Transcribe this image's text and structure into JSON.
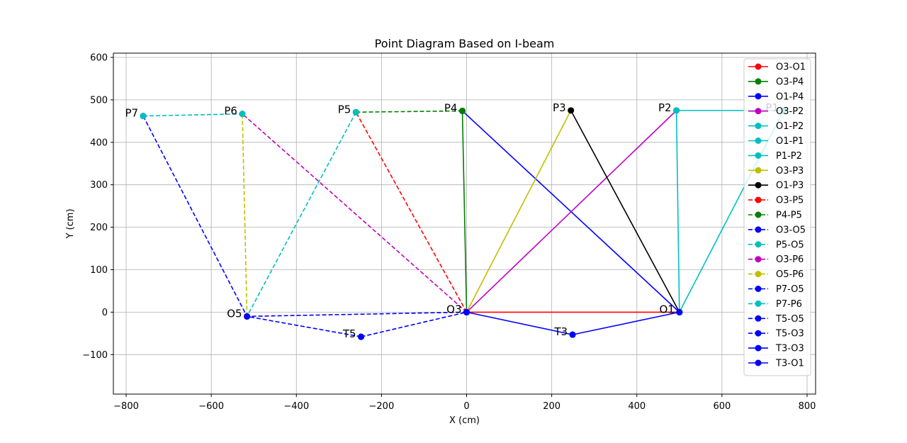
{
  "chart_data": {
    "type": "line",
    "title": "Point Diagram Based on I-beam",
    "xlabel": "X (cm)",
    "ylabel": "Y (cm)",
    "xlim": [
      -830,
      820
    ],
    "ylim": [
      -193,
      610
    ],
    "x_ticks": [
      -800,
      -600,
      -400,
      -200,
      0,
      200,
      400,
      600,
      800
    ],
    "x_tick_labels": [
      "−800",
      "−600",
      "−400",
      "−200",
      "0",
      "200",
      "400",
      "600",
      "800"
    ],
    "y_ticks": [
      -100,
      0,
      100,
      200,
      300,
      400,
      500,
      600
    ],
    "y_tick_labels": [
      "−100",
      "0",
      "100",
      "200",
      "300",
      "400",
      "500",
      "600"
    ],
    "grid": true,
    "legend_position": "right",
    "points": [
      {
        "label": "O3",
        "x": 0,
        "y": 0
      },
      {
        "label": "O1",
        "x": 500,
        "y": 0
      },
      {
        "label": "P1",
        "x": 745,
        "y": 475
      },
      {
        "label": "P2",
        "x": 493,
        "y": 475
      },
      {
        "label": "P3",
        "x": 245,
        "y": 475
      },
      {
        "label": "P4",
        "x": -10,
        "y": 474
      },
      {
        "label": "P5",
        "x": -260,
        "y": 471
      },
      {
        "label": "P6",
        "x": -527,
        "y": 467
      },
      {
        "label": "P7",
        "x": -760,
        "y": 462
      },
      {
        "label": "O5",
        "x": -516,
        "y": -10
      },
      {
        "label": "T5",
        "x": -248,
        "y": -58
      },
      {
        "label": "T3",
        "x": 249,
        "y": -53
      }
    ],
    "series": [
      {
        "name": "O3-O1",
        "color": "#ff0000",
        "dashed": false,
        "from": "O3",
        "to": "O1"
      },
      {
        "name": "O3-P4",
        "color": "#008000",
        "dashed": false,
        "from": "O3",
        "to": "P4"
      },
      {
        "name": "O1-P4",
        "color": "#0000ff",
        "dashed": false,
        "from": "O1",
        "to": "P4"
      },
      {
        "name": "O3-P2",
        "color": "#bf00bf",
        "dashed": false,
        "from": "O3",
        "to": "P2"
      },
      {
        "name": "O1-P2",
        "color": "#00bfbf",
        "dashed": false,
        "from": "O1",
        "to": "P2"
      },
      {
        "name": "O1-P1",
        "color": "#00bfbf",
        "dashed": false,
        "from": "O1",
        "to": "P1"
      },
      {
        "name": "P1-P2",
        "color": "#00bfbf",
        "dashed": false,
        "from": "P1",
        "to": "P2"
      },
      {
        "name": "O3-P3",
        "color": "#bfbf00",
        "dashed": false,
        "from": "O3",
        "to": "P3"
      },
      {
        "name": "O1-P3",
        "color": "#000000",
        "dashed": false,
        "from": "O1",
        "to": "P3"
      },
      {
        "name": "O3-P5",
        "color": "#ff0000",
        "dashed": true,
        "from": "O3",
        "to": "P5"
      },
      {
        "name": "P4-P5",
        "color": "#008000",
        "dashed": true,
        "from": "P4",
        "to": "P5"
      },
      {
        "name": "O3-O5",
        "color": "#0000ff",
        "dashed": true,
        "from": "O3",
        "to": "O5"
      },
      {
        "name": "P5-O5",
        "color": "#00bfbf",
        "dashed": true,
        "from": "P5",
        "to": "O5"
      },
      {
        "name": "O3-P6",
        "color": "#bf00bf",
        "dashed": true,
        "from": "O3",
        "to": "P6"
      },
      {
        "name": "O5-P6",
        "color": "#bfbf00",
        "dashed": true,
        "from": "O5",
        "to": "P6"
      },
      {
        "name": "P7-O5",
        "color": "#0000ff",
        "dashed": true,
        "from": "P7",
        "to": "O5"
      },
      {
        "name": "P7-P6",
        "color": "#00bfbf",
        "dashed": true,
        "from": "P7",
        "to": "P6"
      },
      {
        "name": "T5-O5",
        "color": "#0000ff",
        "dashed": true,
        "from": "T5",
        "to": "O5"
      },
      {
        "name": "T5-O3",
        "color": "#0000ff",
        "dashed": true,
        "from": "T5",
        "to": "O3"
      },
      {
        "name": "T3-O3",
        "color": "#0000ff",
        "dashed": false,
        "from": "T3",
        "to": "O3"
      },
      {
        "name": "T3-O1",
        "color": "#0000ff",
        "dashed": false,
        "from": "T3",
        "to": "O1"
      }
    ]
  }
}
